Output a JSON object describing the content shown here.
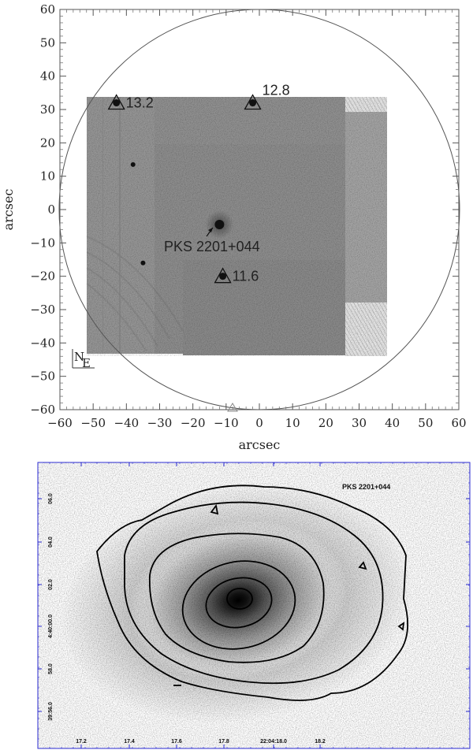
{
  "finding_chart": {
    "xlabel": "arcsec",
    "ylabel": "arcsec",
    "x_ticks": [
      "−60",
      "−50",
      "−40",
      "−30",
      "−20",
      "−10",
      "0",
      "10",
      "20",
      "30",
      "40",
      "50",
      "60"
    ],
    "y_ticks": [
      "60",
      "50",
      "40",
      "30",
      "20",
      "10",
      "0",
      "−10",
      "−20",
      "−30",
      "−40",
      "−50",
      "−60"
    ],
    "compass": {
      "north": "N",
      "east": "E"
    },
    "target_label": "PKS 2201+044",
    "stars": [
      {
        "label": "13.2",
        "x": -43,
        "y": 32
      },
      {
        "label": "12.8",
        "x": -2,
        "y": 32
      },
      {
        "label": "11.6",
        "x": -11,
        "y": -20
      }
    ],
    "field_stars": [
      {
        "x": -38,
        "y": 13.5
      },
      {
        "x": -35,
        "y": -16
      }
    ],
    "nucleus": {
      "x": -12,
      "y": -4.5
    }
  },
  "contour_plot": {
    "title": "PKS 2201+044",
    "x_ticks": [
      "17.2",
      "17.4",
      "17.6",
      "17.8",
      "22:04:18.0",
      "18.2"
    ],
    "y_ticks": [
      "06.0",
      "04.0",
      "02.0",
      "4:40:00.0",
      "58.0",
      "39:56.0"
    ],
    "frame_color": "#2a2ad0"
  }
}
